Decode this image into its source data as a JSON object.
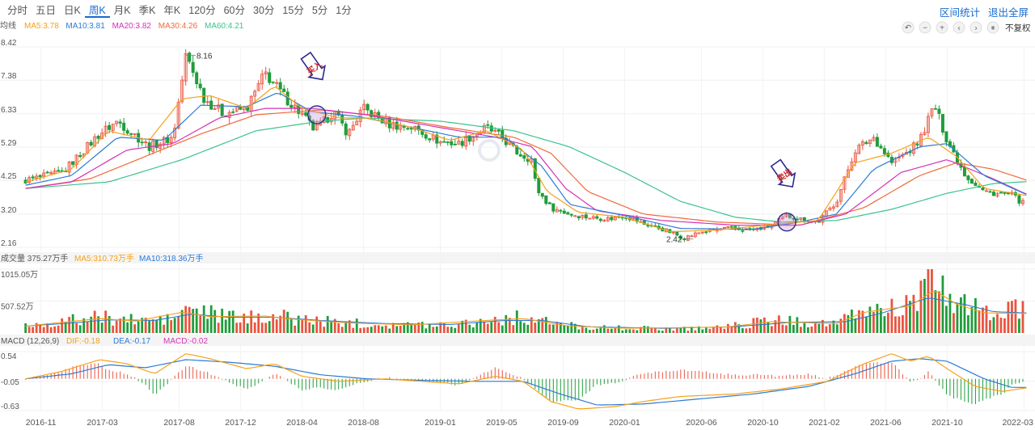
{
  "tabs": [
    "分时",
    "五日",
    "日K",
    "周K",
    "月K",
    "季K",
    "年K",
    "120分",
    "60分",
    "30分",
    "15分",
    "5分",
    "1分"
  ],
  "active_tab": "周K",
  "tools": [
    "区间统计",
    "退出全屏"
  ],
  "controls": {
    "icons": [
      "undo-icon",
      "minus-icon",
      "plus-icon",
      "left-icon",
      "right-icon",
      "pause-icon"
    ],
    "symbols": [
      "↶",
      "−",
      "+",
      "‹",
      "›",
      "⏸"
    ],
    "adjust_label": "不复权"
  },
  "colors": {
    "up": "#e9543f",
    "down": "#1f9d3a",
    "ma5": "#f5a11a",
    "ma10": "#2c7bd6",
    "ma20": "#d531b8",
    "ma30": "#f06a3a",
    "ma60": "#3cc28c"
  },
  "chart_data": [
    {
      "type": "candlestick",
      "panel": "price",
      "label": "均线",
      "legend": [
        {
          "name": "MA5",
          "value": "3.78"
        },
        {
          "name": "MA10",
          "value": "3.81"
        },
        {
          "name": "MA20",
          "value": "3.82"
        },
        {
          "name": "MA30",
          "value": "4.26"
        },
        {
          "name": "MA60",
          "value": "4.21"
        }
      ],
      "y_ticks": [
        "8.42",
        "7.38",
        "6.33",
        "5.29",
        "4.25",
        "3.20",
        "2.16"
      ],
      "ylim": [
        2.16,
        8.42
      ],
      "x_ticks": [
        "2016-11",
        "2017-03",
        "2017-08",
        "2017-12",
        "2018-04",
        "2018-08",
        "2019-01",
        "2019-05",
        "2019-09",
        "2020-01",
        "2020-06",
        "2020-10",
        "2021-02",
        "2021-06",
        "2021-10",
        "2022-03"
      ],
      "close_path": [
        [
          2016.75,
          4.25
        ],
        [
          2016.95,
          4.5
        ],
        [
          2017.15,
          5.7
        ],
        [
          2017.25,
          6.1
        ],
        [
          2017.42,
          5.3
        ],
        [
          2017.55,
          5.6
        ],
        [
          2017.62,
          8.16
        ],
        [
          2017.72,
          6.8
        ],
        [
          2017.82,
          6.35
        ],
        [
          2017.95,
          6.5
        ],
        [
          2018.05,
          7.6
        ],
        [
          2018.15,
          6.9
        ],
        [
          2018.25,
          6.3
        ],
        [
          2018.32,
          5.8
        ],
        [
          2018.42,
          6.4
        ],
        [
          2018.5,
          5.7
        ],
        [
          2018.58,
          6.5
        ],
        [
          2018.72,
          6.0
        ],
        [
          2018.85,
          5.9
        ],
        [
          2019.0,
          5.45
        ],
        [
          2019.1,
          5.4
        ],
        [
          2019.25,
          5.9
        ],
        [
          2019.33,
          5.6
        ],
        [
          2019.42,
          5.1
        ],
        [
          2019.5,
          4.9
        ],
        [
          2019.52,
          4.0
        ],
        [
          2019.6,
          3.4
        ],
        [
          2019.7,
          3.2
        ],
        [
          2019.8,
          3.1
        ],
        [
          2019.92,
          3.05
        ],
        [
          2020.0,
          3.15
        ],
        [
          2020.1,
          2.9
        ],
        [
          2020.22,
          2.7
        ],
        [
          2020.32,
          2.45
        ],
        [
          2020.42,
          2.65
        ],
        [
          2020.55,
          2.75
        ],
        [
          2020.7,
          2.7
        ],
        [
          2020.8,
          2.85
        ],
        [
          2020.88,
          3.15
        ],
        [
          2020.95,
          3.05
        ],
        [
          2021.05,
          2.95
        ],
        [
          2021.15,
          3.6
        ],
        [
          2021.25,
          5.2
        ],
        [
          2021.35,
          5.6
        ],
        [
          2021.45,
          4.8
        ],
        [
          2021.55,
          5.2
        ],
        [
          2021.6,
          5.5
        ],
        [
          2021.68,
          6.6
        ],
        [
          2021.75,
          5.5
        ],
        [
          2021.85,
          4.4
        ],
        [
          2021.95,
          3.9
        ],
        [
          2022.1,
          3.8
        ],
        [
          2022.18,
          3.45
        ]
      ],
      "ma5_path": [
        [
          2016.75,
          4.2
        ],
        [
          2017.0,
          4.6
        ],
        [
          2017.2,
          5.8
        ],
        [
          2017.42,
          5.5
        ],
        [
          2017.6,
          6.8
        ],
        [
          2017.75,
          6.9
        ],
        [
          2017.95,
          6.5
        ],
        [
          2018.1,
          7.2
        ],
        [
          2018.25,
          6.5
        ],
        [
          2018.45,
          6.2
        ],
        [
          2018.6,
          6.2
        ],
        [
          2018.85,
          5.9
        ],
        [
          2019.05,
          5.5
        ],
        [
          2019.25,
          5.8
        ],
        [
          2019.45,
          5.2
        ],
        [
          2019.58,
          3.9
        ],
        [
          2019.75,
          3.25
        ],
        [
          2020.0,
          3.1
        ],
        [
          2020.25,
          2.65
        ],
        [
          2020.5,
          2.7
        ],
        [
          2020.85,
          2.9
        ],
        [
          2021.05,
          3.0
        ],
        [
          2021.25,
          4.8
        ],
        [
          2021.45,
          5.1
        ],
        [
          2021.65,
          5.6
        ],
        [
          2021.8,
          5.0
        ],
        [
          2021.95,
          4.0
        ],
        [
          2022.18,
          3.78
        ]
      ],
      "ma10_path": [
        [
          2016.75,
          4.1
        ],
        [
          2017.0,
          4.4
        ],
        [
          2017.25,
          5.6
        ],
        [
          2017.5,
          5.5
        ],
        [
          2017.7,
          6.6
        ],
        [
          2017.95,
          6.55
        ],
        [
          2018.12,
          7.0
        ],
        [
          2018.3,
          6.4
        ],
        [
          2018.55,
          6.25
        ],
        [
          2018.85,
          5.9
        ],
        [
          2019.1,
          5.6
        ],
        [
          2019.35,
          5.6
        ],
        [
          2019.55,
          4.7
        ],
        [
          2019.7,
          3.5
        ],
        [
          2020.0,
          3.15
        ],
        [
          2020.3,
          2.75
        ],
        [
          2020.7,
          2.72
        ],
        [
          2020.95,
          2.95
        ],
        [
          2021.15,
          3.2
        ],
        [
          2021.35,
          4.6
        ],
        [
          2021.6,
          5.3
        ],
        [
          2021.75,
          5.4
        ],
        [
          2021.95,
          4.4
        ],
        [
          2022.18,
          3.81
        ]
      ],
      "ma20_path": [
        [
          2016.75,
          4.0
        ],
        [
          2017.0,
          4.2
        ],
        [
          2017.3,
          5.2
        ],
        [
          2017.55,
          5.4
        ],
        [
          2017.8,
          6.2
        ],
        [
          2018.05,
          6.5
        ],
        [
          2018.3,
          6.5
        ],
        [
          2018.6,
          6.3
        ],
        [
          2018.95,
          5.95
        ],
        [
          2019.3,
          5.6
        ],
        [
          2019.5,
          5.3
        ],
        [
          2019.68,
          4.0
        ],
        [
          2019.85,
          3.3
        ],
        [
          2020.2,
          3.0
        ],
        [
          2020.6,
          2.85
        ],
        [
          2020.95,
          2.85
        ],
        [
          2021.2,
          3.2
        ],
        [
          2021.5,
          4.5
        ],
        [
          2021.75,
          4.9
        ],
        [
          2022.0,
          4.3
        ],
        [
          2022.18,
          3.82
        ]
      ],
      "ma30_path": [
        [
          2016.75,
          4.0
        ],
        [
          2017.1,
          4.3
        ],
        [
          2017.4,
          5.0
        ],
        [
          2017.7,
          5.7
        ],
        [
          2018.0,
          6.3
        ],
        [
          2018.35,
          6.45
        ],
        [
          2018.7,
          6.25
        ],
        [
          2019.05,
          5.9
        ],
        [
          2019.4,
          5.6
        ],
        [
          2019.6,
          5.1
        ],
        [
          2019.8,
          3.9
        ],
        [
          2020.1,
          3.2
        ],
        [
          2020.5,
          2.95
        ],
        [
          2020.95,
          2.85
        ],
        [
          2021.3,
          3.4
        ],
        [
          2021.6,
          4.4
        ],
        [
          2021.8,
          4.8
        ],
        [
          2022.0,
          4.6
        ],
        [
          2022.18,
          4.26
        ]
      ],
      "ma60_path": [
        [
          2016.75,
          4.0
        ],
        [
          2017.2,
          4.2
        ],
        [
          2017.6,
          4.9
        ],
        [
          2018.0,
          5.8
        ],
        [
          2018.35,
          6.1
        ],
        [
          2018.6,
          6.2
        ],
        [
          2019.0,
          6.1
        ],
        [
          2019.4,
          5.8
        ],
        [
          2019.7,
          5.3
        ],
        [
          2020.0,
          4.5
        ],
        [
          2020.3,
          3.6
        ],
        [
          2020.6,
          3.1
        ],
        [
          2020.85,
          2.95
        ],
        [
          2021.15,
          3.0
        ],
        [
          2021.45,
          3.35
        ],
        [
          2021.75,
          3.85
        ],
        [
          2022.0,
          4.15
        ],
        [
          2022.18,
          4.21
        ]
      ],
      "annotations": [
        {
          "text": "8.16",
          "x": 2017.62,
          "y": 8.16
        },
        {
          "text": "2.42",
          "x": 2020.32,
          "y": 2.42
        }
      ],
      "markers": [
        {
          "label": "买入",
          "x": 2018.33,
          "y": 6.3
        },
        {
          "label": "卖出",
          "x": 2020.88,
          "y": 2.95
        }
      ]
    },
    {
      "type": "bar",
      "panel": "volume",
      "label": "成交量",
      "legend": [
        {
          "name": "成交量",
          "value": "375.27万手"
        },
        {
          "name": "MA5",
          "value": "310.73万手"
        },
        {
          "name": "MA10",
          "value": "318.36万手"
        }
      ],
      "y_ticks": [
        "1015.05万",
        "507.52万"
      ],
      "ylim": [
        0,
        1015.05
      ],
      "profile": [
        [
          2016.75,
          120
        ],
        [
          2016.95,
          180
        ],
        [
          2017.15,
          250
        ],
        [
          2017.35,
          200
        ],
        [
          2017.55,
          220
        ],
        [
          2017.63,
          400
        ],
        [
          2017.75,
          300
        ],
        [
          2017.95,
          220
        ],
        [
          2018.05,
          300
        ],
        [
          2018.2,
          230
        ],
        [
          2018.4,
          180
        ],
        [
          2018.6,
          150
        ],
        [
          2018.85,
          130
        ],
        [
          2019.05,
          140
        ],
        [
          2019.25,
          200
        ],
        [
          2019.45,
          250
        ],
        [
          2019.6,
          160
        ],
        [
          2019.8,
          90
        ],
        [
          2020.0,
          80
        ],
        [
          2020.3,
          70
        ],
        [
          2020.55,
          100
        ],
        [
          2020.8,
          200
        ],
        [
          2020.95,
          180
        ],
        [
          2021.15,
          150
        ],
        [
          2021.3,
          350
        ],
        [
          2021.45,
          400
        ],
        [
          2021.55,
          450
        ],
        [
          2021.68,
          800
        ],
        [
          2021.8,
          500
        ],
        [
          2021.95,
          320
        ],
        [
          2022.18,
          380
        ]
      ],
      "ma5_path": [
        [
          2016.75,
          110
        ],
        [
          2016.95,
          170
        ],
        [
          2017.15,
          230
        ],
        [
          2017.35,
          190
        ],
        [
          2017.6,
          330
        ],
        [
          2017.75,
          260
        ],
        [
          2018.05,
          270
        ],
        [
          2018.2,
          220
        ],
        [
          2018.5,
          160
        ],
        [
          2018.85,
          130
        ],
        [
          2019.25,
          200
        ],
        [
          2019.45,
          230
        ],
        [
          2019.7,
          110
        ],
        [
          2020.0,
          75
        ],
        [
          2020.55,
          95
        ],
        [
          2020.8,
          180
        ],
        [
          2021.15,
          150
        ],
        [
          2021.3,
          330
        ],
        [
          2021.55,
          430
        ],
        [
          2021.68,
          680
        ],
        [
          2021.8,
          460
        ],
        [
          2021.95,
          320
        ],
        [
          2022.18,
          310.73
        ]
      ],
      "ma10_path": [
        [
          2016.75,
          110
        ],
        [
          2017.0,
          160
        ],
        [
          2017.2,
          210
        ],
        [
          2017.45,
          200
        ],
        [
          2017.65,
          300
        ],
        [
          2017.85,
          250
        ],
        [
          2018.1,
          250
        ],
        [
          2018.35,
          200
        ],
        [
          2018.7,
          150
        ],
        [
          2019.05,
          135
        ],
        [
          2019.35,
          200
        ],
        [
          2019.55,
          200
        ],
        [
          2019.8,
          100
        ],
        [
          2020.2,
          75
        ],
        [
          2020.6,
          100
        ],
        [
          2020.9,
          170
        ],
        [
          2021.2,
          180
        ],
        [
          2021.4,
          320
        ],
        [
          2021.65,
          560
        ],
        [
          2021.85,
          450
        ],
        [
          2022.0,
          340
        ],
        [
          2022.18,
          318.36
        ]
      ]
    },
    {
      "type": "bar",
      "panel": "macd",
      "label": "MACD (12,26,9)",
      "legend": [
        {
          "name": "DIF",
          "value": "-0.18"
        },
        {
          "name": "DEA",
          "value": "-0.17"
        },
        {
          "name": "MACD",
          "value": "-0.02"
        }
      ],
      "y_ticks": [
        "0.54",
        "-0.05",
        "-0.63"
      ],
      "ylim": [
        -0.63,
        0.54
      ],
      "dif_path": [
        [
          2016.75,
          0.0
        ],
        [
          2016.95,
          0.15
        ],
        [
          2017.15,
          0.38
        ],
        [
          2017.3,
          0.3
        ],
        [
          2017.45,
          0.1
        ],
        [
          2017.62,
          0.5
        ],
        [
          2017.75,
          0.4
        ],
        [
          2017.95,
          0.2
        ],
        [
          2018.1,
          0.3
        ],
        [
          2018.25,
          0.05
        ],
        [
          2018.45,
          -0.05
        ],
        [
          2018.7,
          0.0
        ],
        [
          2018.9,
          -0.05
        ],
        [
          2019.1,
          -0.1
        ],
        [
          2019.3,
          0.05
        ],
        [
          2019.45,
          -0.05
        ],
        [
          2019.6,
          -0.45
        ],
        [
          2019.75,
          -0.6
        ],
        [
          2019.95,
          -0.55
        ],
        [
          2020.1,
          -0.45
        ],
        [
          2020.3,
          -0.35
        ],
        [
          2020.6,
          -0.3
        ],
        [
          2020.85,
          -0.2
        ],
        [
          2021.1,
          -0.05
        ],
        [
          2021.3,
          0.3
        ],
        [
          2021.45,
          0.5
        ],
        [
          2021.55,
          0.35
        ],
        [
          2021.65,
          0.45
        ],
        [
          2021.75,
          0.2
        ],
        [
          2021.9,
          -0.15
        ],
        [
          2022.05,
          -0.25
        ],
        [
          2022.18,
          -0.18
        ]
      ],
      "dea_path": [
        [
          2016.75,
          0.0
        ],
        [
          2017.0,
          0.1
        ],
        [
          2017.2,
          0.28
        ],
        [
          2017.4,
          0.22
        ],
        [
          2017.62,
          0.38
        ],
        [
          2017.85,
          0.33
        ],
        [
          2018.1,
          0.25
        ],
        [
          2018.35,
          0.08
        ],
        [
          2018.6,
          0.0
        ],
        [
          2018.9,
          -0.03
        ],
        [
          2019.2,
          -0.05
        ],
        [
          2019.45,
          -0.05
        ],
        [
          2019.65,
          -0.3
        ],
        [
          2019.85,
          -0.52
        ],
        [
          2020.1,
          -0.5
        ],
        [
          2020.4,
          -0.4
        ],
        [
          2020.7,
          -0.3
        ],
        [
          2021.0,
          -0.15
        ],
        [
          2021.25,
          0.1
        ],
        [
          2021.45,
          0.35
        ],
        [
          2021.6,
          0.4
        ],
        [
          2021.75,
          0.35
        ],
        [
          2021.95,
          0.0
        ],
        [
          2022.1,
          -0.17
        ],
        [
          2022.18,
          -0.17
        ]
      ]
    }
  ]
}
